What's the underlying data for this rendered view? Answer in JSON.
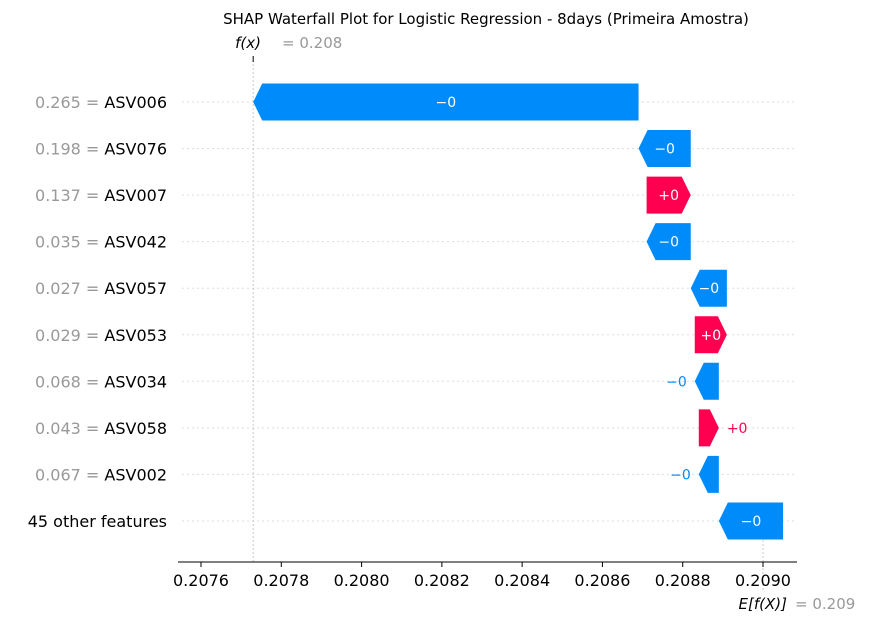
{
  "chart_data": {
    "type": "waterfall",
    "title": "SHAP Waterfall Plot for Logistic Regression - 8days (Primeira Amostra)",
    "fx": {
      "symbol": "f(x)",
      "value_label": "= 0.208",
      "value": 0.20773
    },
    "base": {
      "symbol": "E[f(X)]",
      "value_label": "= 0.209",
      "value": 0.209
    },
    "xlim": [
      0.2075,
      0.20912
    ],
    "ticks": [
      {
        "value": 0.2076,
        "label": "0.2076"
      },
      {
        "value": 0.2078,
        "label": "0.2078"
      },
      {
        "value": 0.208,
        "label": "0.2080"
      },
      {
        "value": 0.2082,
        "label": "0.2082"
      },
      {
        "value": 0.2084,
        "label": "0.2084"
      },
      {
        "value": 0.2086,
        "label": "0.2086"
      },
      {
        "value": 0.2088,
        "label": "0.2088"
      },
      {
        "value": 0.209,
        "label": "0.2090"
      }
    ],
    "features": [
      {
        "value_text": "0.265 =",
        "name": "ASV006",
        "start": 0.20869,
        "end": 0.20773,
        "label": "−0",
        "label_pos": "inside"
      },
      {
        "value_text": "0.198 =",
        "name": "ASV076",
        "start": 0.20882,
        "end": 0.20869,
        "label": "−0",
        "label_pos": "inside"
      },
      {
        "value_text": "0.137 =",
        "name": "ASV007",
        "start": 0.20871,
        "end": 0.20882,
        "label": "+0",
        "label_pos": "inside"
      },
      {
        "value_text": "0.035 =",
        "name": "ASV042",
        "start": 0.20882,
        "end": 0.20871,
        "label": "−0",
        "label_pos": "inside"
      },
      {
        "value_text": "0.027 =",
        "name": "ASV057",
        "start": 0.20891,
        "end": 0.20882,
        "label": "−0",
        "label_pos": "inside"
      },
      {
        "value_text": "0.029 =",
        "name": "ASV053",
        "start": 0.20883,
        "end": 0.20891,
        "label": "+0",
        "label_pos": "inside"
      },
      {
        "value_text": "0.068 =",
        "name": "ASV034",
        "start": 0.20889,
        "end": 0.20883,
        "label": "−0",
        "label_pos": "outside"
      },
      {
        "value_text": "0.043 =",
        "name": "ASV058",
        "start": 0.20884,
        "end": 0.20889,
        "label": "+0",
        "label_pos": "outside"
      },
      {
        "value_text": "0.067 =",
        "name": "ASV002",
        "start": 0.20889,
        "end": 0.20884,
        "label": "−0",
        "label_pos": "outside"
      },
      {
        "value_text": "",
        "name": "45 other features",
        "start": 0.20905,
        "end": 0.20889,
        "label": "−0",
        "label_pos": "inside"
      }
    ],
    "colors": {
      "positive": "#ff0051",
      "negative": "#008bfb",
      "grid": "#dddddd",
      "reference_line": "#bbbbbb",
      "text_muted": "#999999"
    }
  }
}
